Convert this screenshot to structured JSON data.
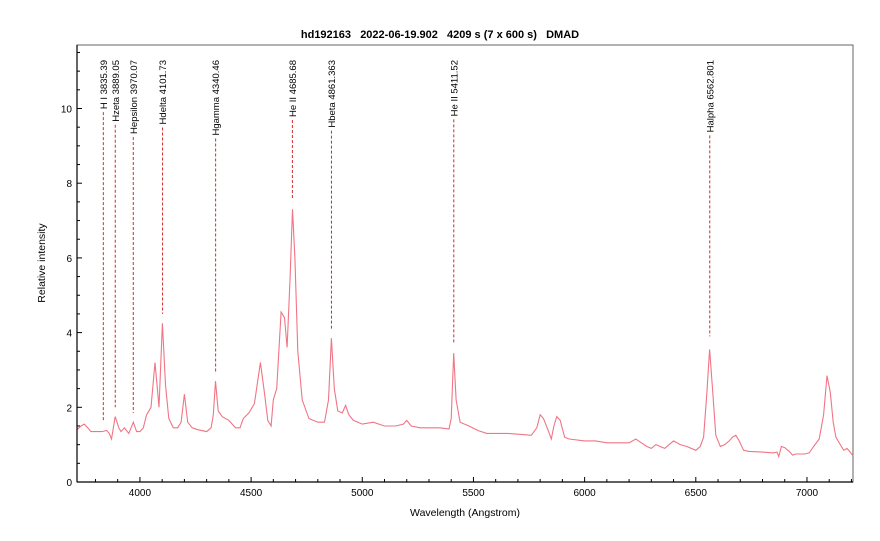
{
  "chart_data": {
    "type": "line",
    "title": "hd192163   2022-06-19.902   4209 s (7 x 600 s)   DMAD",
    "xlabel": "Wavelength (Angstrom)",
    "ylabel": "Relative intensity",
    "xlim": [
      3717,
      7207
    ],
    "ylim": [
      0,
      11.7
    ],
    "xticks": [
      4000,
      4500,
      5000,
      5500,
      6000,
      6500,
      7000
    ],
    "yticks": [
      0,
      2,
      4,
      6,
      8,
      10
    ],
    "grid": false,
    "colors": {
      "series": "#f07585",
      "markers": "#d42a2a",
      "axis": "#000000"
    },
    "line_markers": [
      {
        "label": "H I 3835.39",
        "wavelength": 3835.39,
        "end_intensity": 1.65
      },
      {
        "label": "Hzeta 3889.05",
        "wavelength": 3889.05,
        "end_intensity": 2.0
      },
      {
        "label": "Hepsilon 3970.07",
        "wavelength": 3970.07,
        "end_intensity": 1.85
      },
      {
        "label": "Hdelta 4101.73",
        "wavelength": 4101.73,
        "end_intensity": 4.5
      },
      {
        "label": "Hgamma 4340.46",
        "wavelength": 4340.46,
        "end_intensity": 2.9
      },
      {
        "label": "He II 4685.68",
        "wavelength": 4685.68,
        "end_intensity": 7.6
      },
      {
        "label": "Hbeta 4861.363",
        "wavelength": 4861.363,
        "end_intensity": 4.1
      },
      {
        "label": "He II 5411.52",
        "wavelength": 5411.52,
        "end_intensity": 3.7
      },
      {
        "label": "Halpha 6562.801",
        "wavelength": 6562.801,
        "end_intensity": 3.9
      }
    ],
    "series": [
      {
        "name": "spectrum",
        "x": [
          3717,
          3735,
          3750,
          3765,
          3780,
          3800,
          3830,
          3850,
          3862,
          3872,
          3889,
          3905,
          3915,
          3930,
          3950,
          3970,
          3985,
          4000,
          4015,
          4030,
          4050,
          4068,
          4080,
          4086,
          4101,
          4115,
          4130,
          4150,
          4170,
          4185,
          4200,
          4215,
          4235,
          4260,
          4300,
          4320,
          4330,
          4340,
          4352,
          4370,
          4400,
          4430,
          4450,
          4465,
          4490,
          4515,
          4542,
          4560,
          4575,
          4590,
          4600,
          4615,
          4635,
          4650,
          4662,
          4675,
          4686,
          4697,
          4710,
          4730,
          4760,
          4800,
          4830,
          4848,
          4861,
          4874,
          4890,
          4910,
          4925,
          4940,
          4960,
          5000,
          5050,
          5100,
          5150,
          5185,
          5200,
          5220,
          5260,
          5300,
          5350,
          5390,
          5400,
          5411,
          5422,
          5440,
          5480,
          5520,
          5560,
          5600,
          5650,
          5700,
          5760,
          5785,
          5800,
          5815,
          5835,
          5850,
          5862,
          5875,
          5890,
          5910,
          5930,
          6000,
          6050,
          6100,
          6150,
          6200,
          6230,
          6255,
          6280,
          6300,
          6320,
          6340,
          6360,
          6380,
          6400,
          6430,
          6460,
          6500,
          6520,
          6535,
          6550,
          6562,
          6575,
          6590,
          6610,
          6630,
          6650,
          6665,
          6680,
          6695,
          6715,
          6740,
          6800,
          6850,
          6865,
          6873,
          6885,
          6900,
          6920,
          6935,
          6950,
          6970,
          6990,
          7010,
          7030,
          7055,
          7075,
          7090,
          7105,
          7118,
          7130,
          7150,
          7165,
          7180,
          7195,
          7207
        ],
        "y": [
          1.4,
          1.5,
          1.55,
          1.45,
          1.35,
          1.35,
          1.35,
          1.38,
          1.3,
          1.15,
          1.75,
          1.45,
          1.35,
          1.45,
          1.3,
          1.6,
          1.35,
          1.35,
          1.45,
          1.8,
          2.0,
          3.2,
          2.4,
          2.0,
          4.25,
          2.6,
          1.7,
          1.45,
          1.45,
          1.6,
          2.35,
          1.6,
          1.45,
          1.4,
          1.35,
          1.45,
          1.8,
          2.7,
          1.9,
          1.75,
          1.65,
          1.45,
          1.45,
          1.7,
          1.85,
          2.1,
          3.2,
          2.4,
          1.65,
          1.5,
          2.2,
          2.5,
          4.55,
          4.4,
          3.6,
          5.4,
          7.3,
          6.0,
          3.5,
          2.2,
          1.7,
          1.6,
          1.6,
          2.2,
          3.85,
          2.5,
          1.9,
          1.85,
          2.05,
          1.8,
          1.65,
          1.55,
          1.6,
          1.5,
          1.5,
          1.55,
          1.65,
          1.5,
          1.45,
          1.45,
          1.45,
          1.42,
          1.7,
          3.45,
          2.2,
          1.6,
          1.5,
          1.38,
          1.3,
          1.3,
          1.3,
          1.28,
          1.25,
          1.45,
          1.8,
          1.7,
          1.4,
          1.15,
          1.5,
          1.75,
          1.65,
          1.2,
          1.15,
          1.1,
          1.1,
          1.05,
          1.05,
          1.05,
          1.15,
          1.05,
          0.95,
          0.9,
          1.0,
          0.95,
          0.9,
          1.0,
          1.1,
          1.0,
          0.95,
          0.85,
          0.95,
          1.2,
          2.4,
          3.55,
          2.5,
          1.25,
          0.95,
          1.0,
          1.1,
          1.2,
          1.25,
          1.1,
          0.85,
          0.82,
          0.8,
          0.78,
          0.8,
          0.68,
          0.95,
          0.92,
          0.82,
          0.72,
          0.75,
          0.75,
          0.75,
          0.78,
          0.95,
          1.15,
          1.8,
          2.85,
          2.4,
          1.6,
          1.2,
          1.0,
          0.85,
          0.9,
          0.8,
          0.7
        ]
      }
    ]
  }
}
